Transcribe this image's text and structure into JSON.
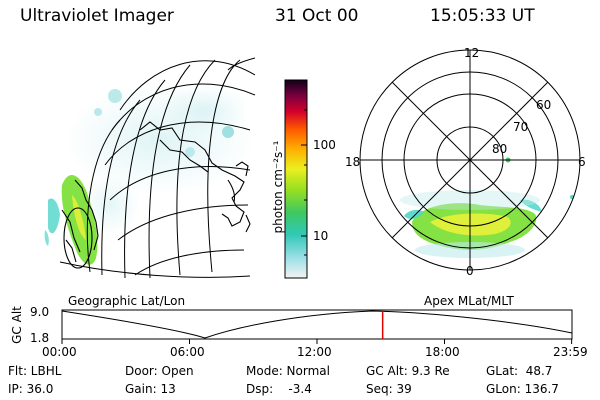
{
  "header": {
    "instrument": "Ultraviolet Imager",
    "date": "31 Oct 00",
    "time": "15:05:33 UT"
  },
  "colorbar": {
    "unit_label": "photon cm⁻²s⁻¹",
    "ticks": [
      "100",
      "10"
    ]
  },
  "polar_plot": {
    "mlt_labels": [
      "12",
      "18",
      "6",
      "0"
    ],
    "lat_labels": [
      "60",
      "70",
      "80"
    ]
  },
  "timeline": {
    "left_caption": "Geographic Lat/Lon",
    "right_caption": "Apex MLat/MLT",
    "axis_title": "GC Alt",
    "y_ticks": [
      "9.0",
      "1.8"
    ],
    "x_ticks": [
      "00:00",
      "06:00",
      "12:00",
      "18:00",
      "23:59"
    ],
    "x_tick_hours": [
      0,
      6,
      12,
      18,
      23.983
    ],
    "current_hour": 15.09
  },
  "info": {
    "col1": [
      "Flt: LBHL",
      "IP: 36.0"
    ],
    "col2": [
      "Door: Open",
      "Gain: 13"
    ],
    "col3": [
      "Mode: Normal",
      "Dsp:    -3.4"
    ],
    "col4": [
      "GC Alt: 9.3 Re",
      "Seq: 39"
    ],
    "col5": [
      "GLat:  48.7",
      "GLon: 136.7"
    ]
  },
  "colors": {
    "aurora_green": "#7ee03a",
    "aurora_yellow": "#e4f03a",
    "aurora_cyan": "#4fd6c8",
    "cursor_red": "#e00000"
  }
}
